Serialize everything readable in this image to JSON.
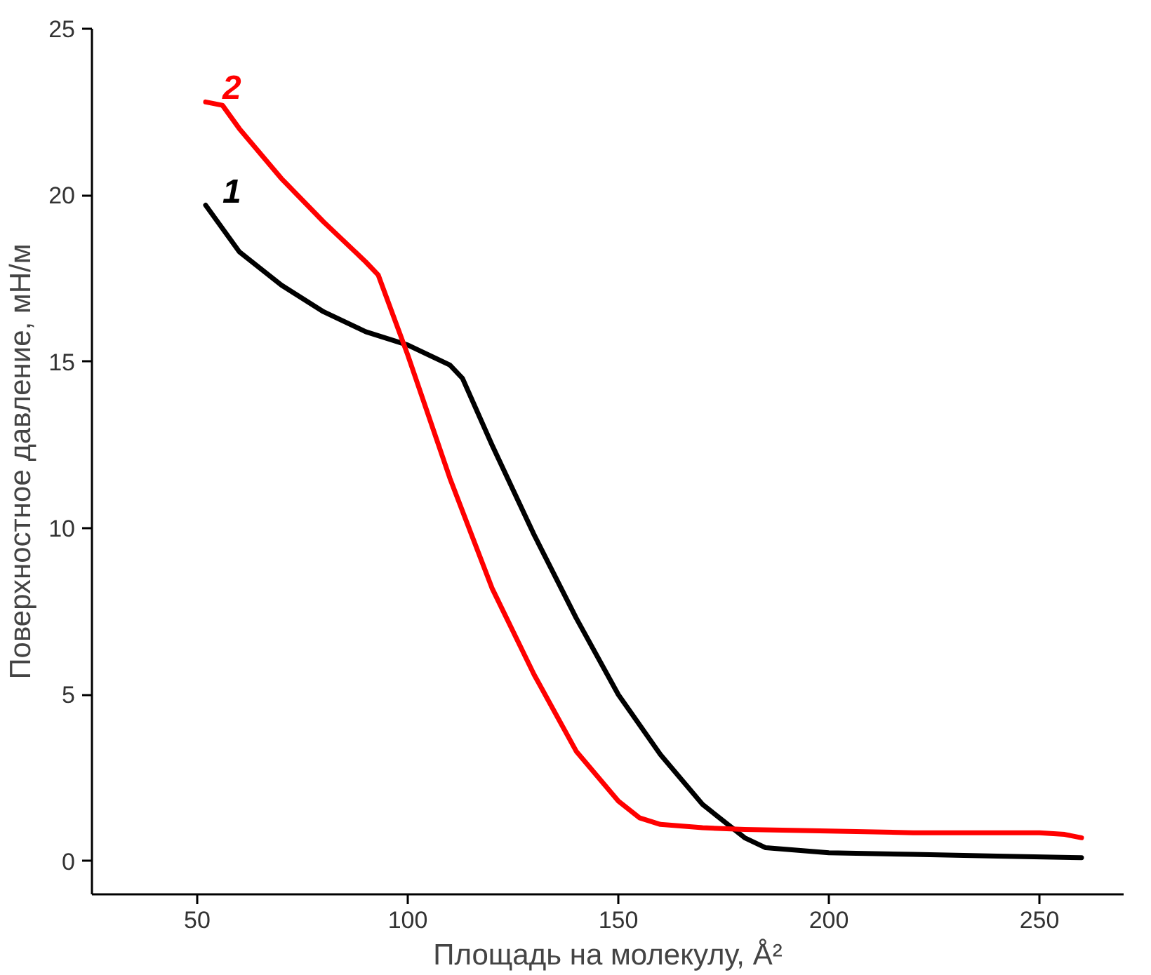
{
  "chart_data": {
    "type": "line",
    "xlabel": "Площадь на молекулу, Å²",
    "ylabel": "Поверхностное давление, мН/м",
    "xlim": [
      25,
      270
    ],
    "ylim": [
      -1,
      25
    ],
    "xticks": [
      50,
      100,
      150,
      200,
      250
    ],
    "yticks": [
      0,
      5,
      10,
      15,
      20,
      25
    ],
    "grid": false,
    "marker": "none",
    "line_style": "solid",
    "series": [
      {
        "name": "1",
        "color": "#000000",
        "x": [
          52,
          60,
          70,
          80,
          90,
          100,
          110,
          113,
          120,
          130,
          140,
          150,
          160,
          170,
          180,
          185,
          200,
          220,
          240,
          260
        ],
        "values": [
          19.7,
          18.3,
          17.3,
          16.5,
          15.9,
          15.5,
          14.9,
          14.5,
          12.5,
          9.8,
          7.3,
          5.0,
          3.2,
          1.7,
          0.7,
          0.4,
          0.25,
          0.2,
          0.15,
          0.1
        ]
      },
      {
        "name": "2",
        "color": "#ff0000",
        "x": [
          52,
          56,
          60,
          70,
          80,
          90,
          93,
          100,
          110,
          120,
          130,
          140,
          150,
          155,
          160,
          170,
          180,
          200,
          220,
          250,
          256,
          260
        ],
        "values": [
          22.8,
          22.7,
          22.0,
          20.5,
          19.2,
          18.0,
          17.6,
          15.2,
          11.5,
          8.2,
          5.6,
          3.3,
          1.8,
          1.3,
          1.1,
          1.0,
          0.95,
          0.9,
          0.85,
          0.85,
          0.8,
          0.7
        ]
      }
    ]
  }
}
